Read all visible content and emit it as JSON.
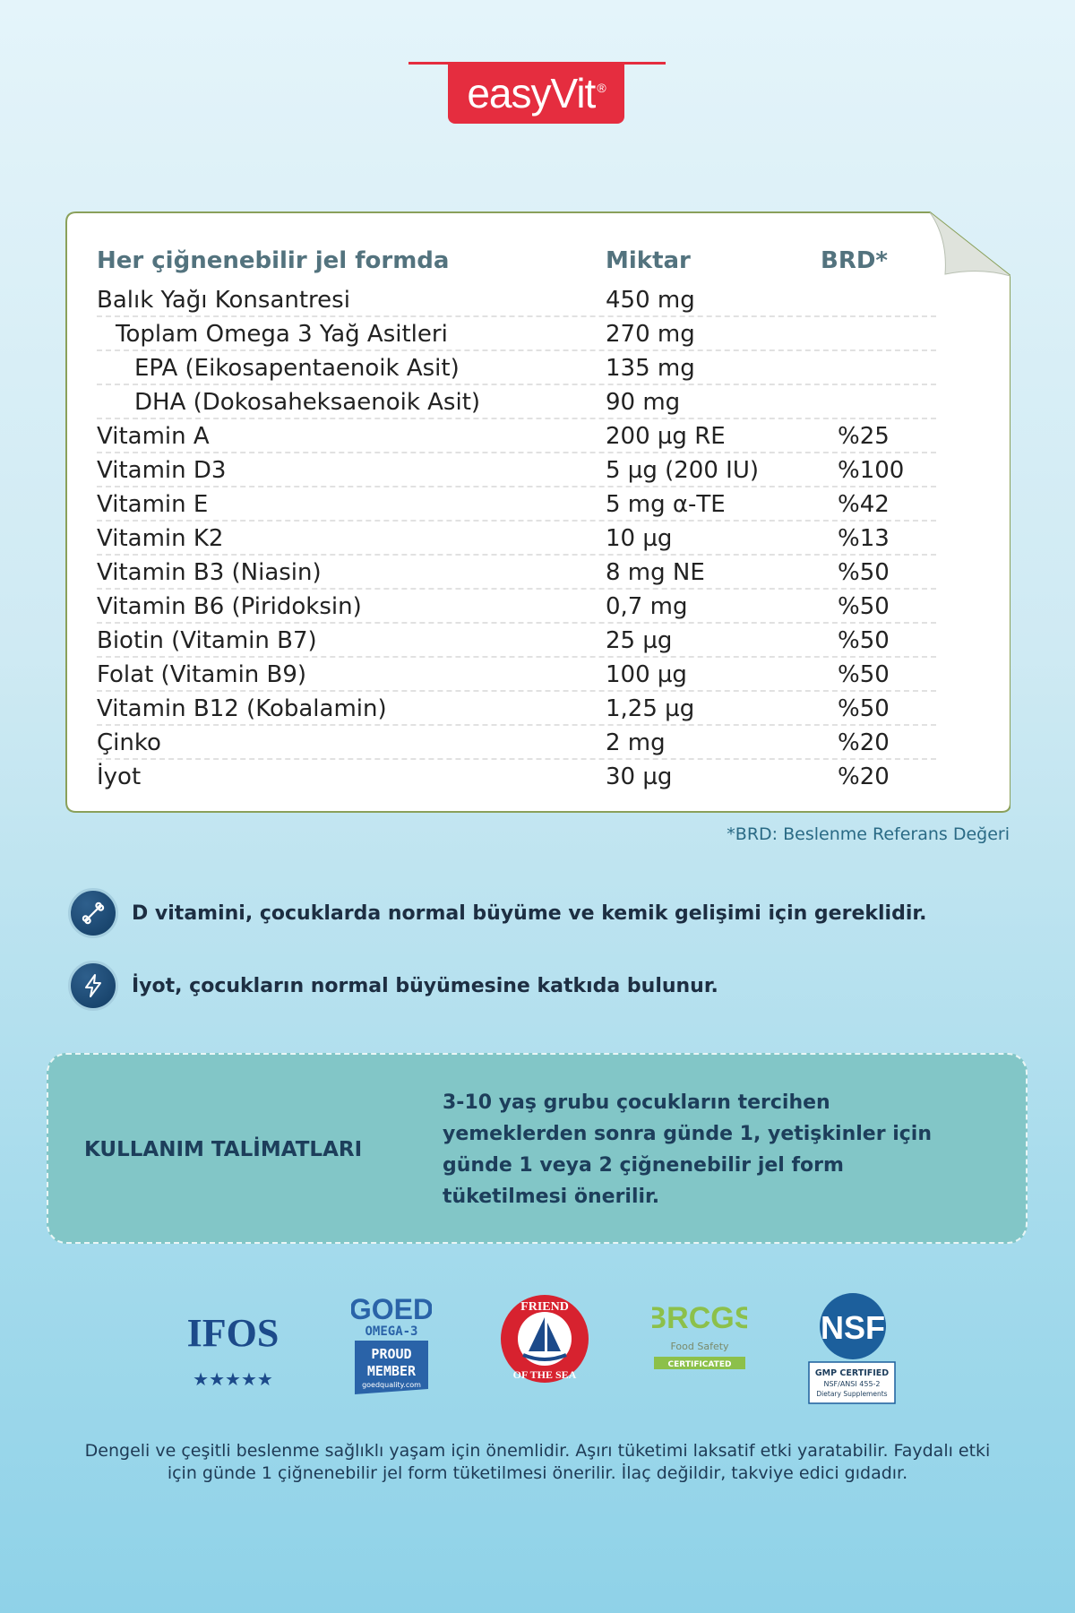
{
  "brand": {
    "name": "easyVit",
    "mark": "®"
  },
  "table": {
    "headers": {
      "ingredient": "Her çiğnenebilir jel formda",
      "amount": "Miktar",
      "nrv": "BRD*"
    },
    "rows": [
      {
        "name": "Balık Yağı Konsantresi",
        "amount": "450 mg",
        "nrv": "",
        "level": 0
      },
      {
        "name": "Toplam Omega 3 Yağ Asitleri",
        "amount": "270 mg",
        "nrv": "",
        "level": 1
      },
      {
        "name": "EPA (Eikosapentaenoik Asit)",
        "amount": "135 mg",
        "nrv": "",
        "level": 2
      },
      {
        "name": "DHA (Dokosaheksaenoik Asit)",
        "amount": "90 mg",
        "nrv": "",
        "level": 2
      },
      {
        "name": "Vitamin A",
        "amount": "200 µg RE",
        "nrv": "%25",
        "level": 0
      },
      {
        "name": "Vitamin D3",
        "amount": "5 µg (200 IU)",
        "nrv": "%100",
        "level": 0
      },
      {
        "name": "Vitamin E",
        "amount": "5 mg α-TE",
        "nrv": "%42",
        "level": 0
      },
      {
        "name": "Vitamin K2",
        "amount": "10 µg",
        "nrv": "%13",
        "level": 0
      },
      {
        "name": "Vitamin B3 (Niasin)",
        "amount": "8 mg NE",
        "nrv": "%50",
        "level": 0
      },
      {
        "name": "Vitamin B6 (Piridoksin)",
        "amount": "0,7 mg",
        "nrv": "%50",
        "level": 0
      },
      {
        "name": "Biotin (Vitamin B7)",
        "amount": "25 µg",
        "nrv": "%50",
        "level": 0
      },
      {
        "name": "Folat (Vitamin B9)",
        "amount": "100 µg",
        "nrv": "%50",
        "level": 0
      },
      {
        "name": "Vitamin B12 (Kobalamin)",
        "amount": "1,25 µg",
        "nrv": "%50",
        "level": 0
      },
      {
        "name": "Çinko",
        "amount": "2 mg",
        "nrv": "%20",
        "level": 0
      },
      {
        "name": "İyot",
        "amount": "30 µg",
        "nrv": "%20",
        "level": 0
      }
    ],
    "footnote": "*BRD: Beslenme Referans Değeri"
  },
  "benefits": [
    {
      "icon": "bone-icon",
      "text": "D vitamini, çocuklarda normal büyüme ve kemik gelişimi için gereklidir."
    },
    {
      "icon": "lightning-icon",
      "text": "İyot, çocukların normal büyümesine katkıda bulunur."
    }
  ],
  "usage": {
    "title": "KULLANIM TALİMATLARI",
    "text": "3-10 yaş grubu çocukların tercihen yemeklerden sonra günde 1, yetişkinler için günde 1 veya 2 çiğnenebilir jel form tüketilmesi önerilir."
  },
  "certifications": {
    "ifos": {
      "name": "IFOS",
      "stars": 5
    },
    "goed": {
      "line1": "GOED",
      "line2": "OMEGA-3",
      "line3": "PROUD",
      "line4": "MEMBER",
      "site": "goedquality.com"
    },
    "fos": {
      "top": "FRIEND",
      "bottom": "OF THE SEA"
    },
    "brcgs": {
      "name": "BRCGS",
      "sub": "Food Safety",
      "badge": "CERTIFICATED"
    },
    "nsf": {
      "name": "NSF",
      "line1": "GMP CERTIFIED",
      "line2": "NSF/ANSI 455-2",
      "line3": "Dietary Supplements"
    }
  },
  "footer": {
    "line1": "Dengeli ve çeşitli beslenme sağlıklı yaşam için önemlidir. Aşırı tüketimi laksatif etki yaratabilir. Faydalı etki",
    "line2": "için günde 1 çiğnenebilir jel form tüketilmesi önerilir. İlaç değildir, takviye edici gıdadır."
  },
  "colors": {
    "brand_red": "#e52d3f",
    "navy": "#1d3e5b",
    "card_border": "#8aa05a",
    "usage_bg": "#82c6c7"
  }
}
